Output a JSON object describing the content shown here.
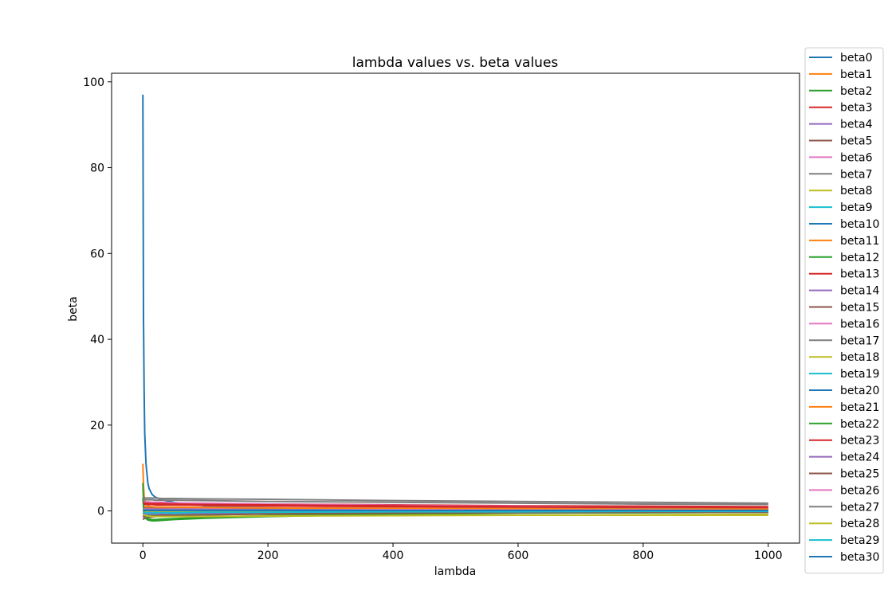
{
  "chart_data": {
    "type": "line",
    "title": "lambda values vs. beta values",
    "xlabel": "lambda",
    "ylabel": "beta",
    "xlim": [
      -50,
      1050
    ],
    "ylim": [
      -7.5,
      102
    ],
    "xticks": [
      0,
      200,
      400,
      600,
      800,
      1000
    ],
    "yticks": [
      0,
      20,
      40,
      60,
      80,
      100
    ],
    "grid": false,
    "legend_position": "outside-right",
    "colors": [
      "#1f77b4",
      "#ff7f0e",
      "#2ca02c",
      "#d62728",
      "#9467bd",
      "#8c564b",
      "#e377c2",
      "#7f7f7f",
      "#bcbd22",
      "#17becf"
    ],
    "x": [
      0,
      1,
      2,
      3,
      5,
      8,
      10,
      15,
      20,
      30,
      50,
      100,
      200,
      400,
      600,
      800,
      1000
    ],
    "series": [
      {
        "name": "beta0",
        "values": [
          97,
          45,
          28,
          18,
          11,
          6.5,
          5.2,
          3.8,
          3.2,
          2.6,
          2.0,
          1.2,
          0.8,
          0.5,
          0.4,
          0.3,
          0.2
        ]
      },
      {
        "name": "beta1",
        "values": [
          11,
          6,
          3.5,
          2.5,
          1.8,
          1.3,
          1.1,
          0.9,
          0.8,
          0.7,
          0.6,
          0.5,
          0.4,
          0.3,
          0.2,
          0.15,
          0.1
        ]
      },
      {
        "name": "beta2",
        "values": [
          6.5,
          2,
          -0.5,
          -1.2,
          -1.8,
          -2.1,
          -2.2,
          -2.3,
          -2.3,
          -2.2,
          -2.0,
          -1.7,
          -1.3,
          -0.8,
          -0.5,
          -0.4,
          -0.3
        ]
      },
      {
        "name": "beta3",
        "values": [
          2.5,
          2.3,
          2.2,
          2.1,
          2.0,
          2.0,
          2.0,
          1.9,
          1.9,
          1.9,
          1.8,
          1.7,
          1.6,
          1.4,
          1.2,
          1.1,
          1.0
        ]
      },
      {
        "name": "beta4",
        "values": [
          -1.5,
          -1.4,
          -1.3,
          -1.2,
          -1.1,
          -1.0,
          -1.0,
          -0.9,
          -0.9,
          -0.8,
          -0.8,
          -0.7,
          -0.6,
          -0.5,
          -0.4,
          -0.35,
          -0.3
        ]
      },
      {
        "name": "beta5",
        "values": [
          -2.0,
          -1.9,
          -1.8,
          -1.7,
          -1.6,
          -1.5,
          -1.5,
          -1.4,
          -1.3,
          -1.2,
          -1.1,
          -0.9,
          -0.7,
          -0.5,
          -0.4,
          -0.3,
          -0.25
        ]
      },
      {
        "name": "beta6",
        "values": [
          1.2,
          1.1,
          1.1,
          1.0,
          1.0,
          1.0,
          1.0,
          0.9,
          0.9,
          0.9,
          0.9,
          0.8,
          0.8,
          0.7,
          0.6,
          0.5,
          0.5
        ]
      },
      {
        "name": "beta7",
        "values": [
          3.2,
          3.1,
          3.1,
          3.0,
          3.0,
          3.0,
          3.0,
          3.0,
          3.0,
          2.9,
          2.9,
          2.8,
          2.7,
          2.4,
          2.2,
          2.0,
          1.8
        ]
      },
      {
        "name": "beta8",
        "values": [
          0.5,
          0.4,
          0.3,
          0.3,
          0.2,
          0.1,
          0.1,
          0.0,
          -0.1,
          -0.2,
          -0.3,
          -0.5,
          -0.7,
          -0.9,
          -1.0,
          -1.0,
          -1.0
        ]
      },
      {
        "name": "beta9",
        "values": [
          -0.8,
          -0.8,
          -0.8,
          -0.8,
          -0.8,
          -0.8,
          -0.8,
          -0.7,
          -0.7,
          -0.7,
          -0.7,
          -0.6,
          -0.5,
          -0.4,
          -0.3,
          -0.25,
          -0.2
        ]
      },
      {
        "name": "beta10",
        "values": [
          0.8,
          0.8,
          0.8,
          0.7,
          0.7,
          0.7,
          0.7,
          0.7,
          0.7,
          0.6,
          0.6,
          0.5,
          0.4,
          0.3,
          0.2,
          0.2,
          0.1
        ]
      },
      {
        "name": "beta11",
        "values": [
          -0.3,
          -0.3,
          -0.3,
          -0.3,
          -0.3,
          -0.3,
          -0.3,
          -0.3,
          -0.3,
          -0.3,
          -0.3,
          -0.2,
          -0.2,
          -0.1,
          -0.1,
          0.0,
          0.0
        ]
      },
      {
        "name": "beta12",
        "values": [
          0.3,
          0.3,
          0.3,
          0.3,
          0.3,
          0.3,
          0.3,
          0.3,
          0.3,
          0.3,
          0.3,
          0.3,
          0.2,
          0.2,
          0.1,
          0.1,
          0.1
        ]
      },
      {
        "name": "beta13",
        "values": [
          1.6,
          1.6,
          1.6,
          1.5,
          1.5,
          1.5,
          1.5,
          1.5,
          1.4,
          1.4,
          1.4,
          1.3,
          1.2,
          1.0,
          0.9,
          0.8,
          0.7
        ]
      },
      {
        "name": "beta14",
        "values": [
          -0.5,
          -0.5,
          -0.5,
          -0.5,
          -0.5,
          -0.5,
          -0.5,
          -0.5,
          -0.5,
          -0.5,
          -0.4,
          -0.4,
          -0.3,
          -0.3,
          -0.2,
          -0.2,
          -0.1
        ]
      },
      {
        "name": "beta15",
        "values": [
          0.6,
          0.6,
          0.6,
          0.6,
          0.6,
          0.6,
          0.6,
          0.6,
          0.6,
          0.6,
          0.6,
          0.5,
          0.5,
          0.4,
          0.3,
          0.3,
          0.2
        ]
      },
      {
        "name": "beta16",
        "values": [
          2.2,
          2.2,
          2.1,
          2.1,
          2.1,
          2.1,
          2.1,
          2.0,
          2.0,
          2.0,
          1.9,
          1.8,
          1.6,
          1.3,
          1.1,
          0.9,
          0.8
        ]
      },
      {
        "name": "beta17",
        "values": [
          0.9,
          0.9,
          0.9,
          0.9,
          0.9,
          0.9,
          0.9,
          0.9,
          0.9,
          0.9,
          0.8,
          0.8,
          0.7,
          0.6,
          0.5,
          0.5,
          0.4
        ]
      },
      {
        "name": "beta18",
        "values": [
          -0.2,
          -0.2,
          -0.2,
          -0.2,
          -0.2,
          -0.2,
          -0.2,
          -0.2,
          -0.2,
          -0.2,
          -0.2,
          -0.2,
          -0.1,
          -0.1,
          -0.1,
          0.0,
          0.0
        ]
      },
      {
        "name": "beta19",
        "values": [
          -1.0,
          -1.0,
          -1.0,
          -1.0,
          -1.0,
          -1.0,
          -1.0,
          -0.9,
          -0.9,
          -0.9,
          -0.8,
          -0.7,
          -0.6,
          -0.4,
          -0.3,
          -0.3,
          -0.2
        ]
      },
      {
        "name": "beta20",
        "values": [
          0.1,
          0.1,
          0.1,
          0.1,
          0.1,
          0.1,
          0.1,
          0.1,
          0.1,
          0.1,
          0.1,
          0.1,
          0.1,
          0.1,
          0.0,
          0.0,
          0.0
        ]
      },
      {
        "name": "beta21",
        "values": [
          1.0,
          1.0,
          1.0,
          1.0,
          1.0,
          1.0,
          1.0,
          1.0,
          0.9,
          0.9,
          0.9,
          0.8,
          0.7,
          0.6,
          0.5,
          0.4,
          0.4
        ]
      },
      {
        "name": "beta22",
        "values": [
          3.0,
          1.0,
          -0.5,
          -1.0,
          -1.5,
          -1.8,
          -1.9,
          -2.0,
          -2.0,
          -1.9,
          -1.8,
          -1.5,
          -1.1,
          -0.7,
          -0.5,
          -0.4,
          -0.3
        ]
      },
      {
        "name": "beta23",
        "values": [
          1.8,
          1.8,
          1.8,
          1.8,
          1.8,
          1.8,
          1.7,
          1.7,
          1.7,
          1.7,
          1.6,
          1.5,
          1.4,
          1.2,
          1.0,
          0.9,
          0.8
        ]
      },
      {
        "name": "beta24",
        "values": [
          -0.6,
          -0.6,
          -0.6,
          -0.6,
          -0.6,
          -0.6,
          -0.6,
          -0.6,
          -0.6,
          -0.6,
          -0.5,
          -0.5,
          -0.4,
          -0.3,
          -0.2,
          -0.2,
          -0.2
        ]
      },
      {
        "name": "beta25",
        "values": [
          -1.2,
          -1.2,
          -1.2,
          -1.2,
          -1.2,
          -1.1,
          -1.1,
          -1.1,
          -1.1,
          -1.0,
          -1.0,
          -0.9,
          -0.7,
          -0.5,
          -0.4,
          -0.3,
          -0.3
        ]
      },
      {
        "name": "beta26",
        "values": [
          0.4,
          0.4,
          0.4,
          0.4,
          0.4,
          0.4,
          0.4,
          0.4,
          0.4,
          0.4,
          0.4,
          0.4,
          0.3,
          0.3,
          0.2,
          0.2,
          0.1
        ]
      },
      {
        "name": "beta27",
        "values": [
          2.6,
          2.6,
          2.6,
          2.6,
          2.6,
          2.6,
          2.6,
          2.6,
          2.5,
          2.5,
          2.5,
          2.4,
          2.2,
          2.0,
          1.8,
          1.6,
          1.5
        ]
      },
      {
        "name": "beta28",
        "values": [
          -0.9,
          -0.9,
          -1.0,
          -1.0,
          -1.1,
          -1.2,
          -1.2,
          -1.3,
          -1.3,
          -1.3,
          -1.3,
          -1.3,
          -1.2,
          -1.1,
          -1.0,
          -0.9,
          -0.8
        ]
      },
      {
        "name": "beta29",
        "values": [
          -0.4,
          -0.4,
          -0.4,
          -0.4,
          -0.4,
          -0.4,
          -0.4,
          -0.4,
          -0.4,
          -0.4,
          -0.4,
          -0.3,
          -0.3,
          -0.2,
          -0.2,
          -0.1,
          -0.1
        ]
      },
      {
        "name": "beta30",
        "values": [
          0.2,
          0.2,
          0.2,
          0.2,
          0.2,
          0.2,
          0.2,
          0.2,
          0.2,
          0.2,
          0.2,
          0.2,
          0.2,
          0.1,
          0.1,
          0.1,
          0.1
        ]
      }
    ]
  }
}
